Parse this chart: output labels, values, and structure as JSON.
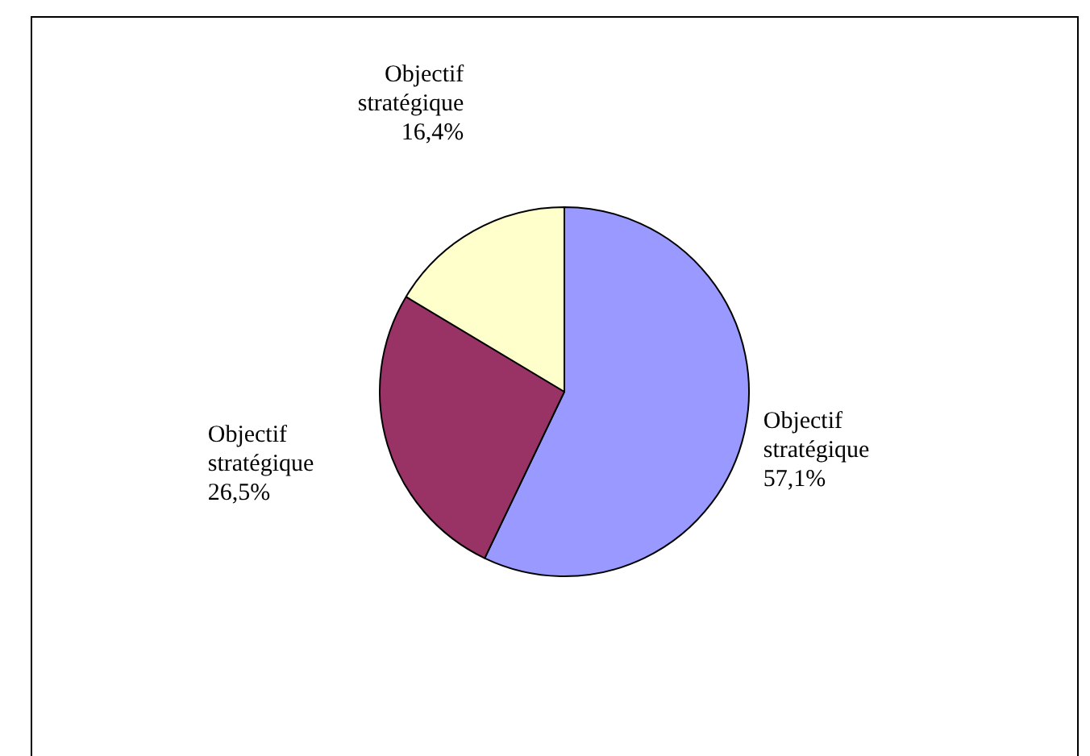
{
  "chart_data": {
    "type": "pie",
    "categories": [
      "Objectif stratégique",
      "Objectif stratégique",
      "Objectif stratégique"
    ],
    "values": [
      57.1,
      26.5,
      16.4
    ],
    "colors": [
      "#9999ff",
      "#993366",
      "#ffffcc"
    ],
    "value_labels": [
      "57,1%",
      "26,5%",
      "16,4%"
    ],
    "legend": false
  }
}
